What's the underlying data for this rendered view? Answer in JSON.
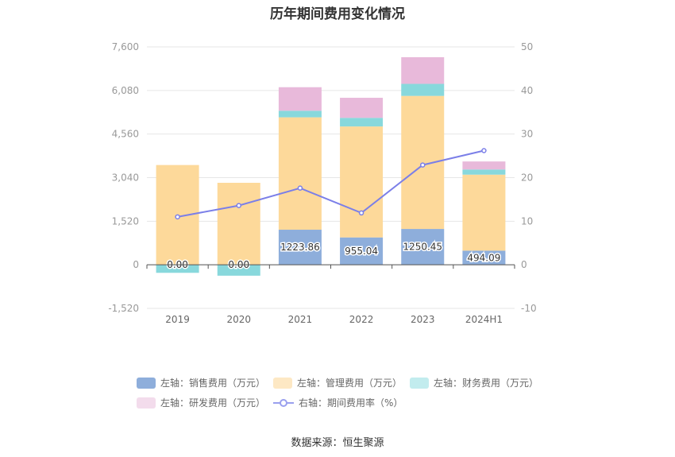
{
  "chart_data": {
    "type": "bar",
    "title": "历年期间费用变化情况",
    "categories": [
      "2019",
      "2020",
      "2021",
      "2022",
      "2023",
      "2024H1"
    ],
    "stacked": true,
    "left_axis": {
      "ylim": [
        -1520,
        7600
      ],
      "ticks": [
        "-1,520",
        "0",
        "1,520",
        "3,040",
        "4,560",
        "6,080",
        "7,600"
      ]
    },
    "right_axis": {
      "ylim": [
        -10,
        50
      ],
      "ticks": [
        "-10",
        "0",
        "10",
        "20",
        "30",
        "40",
        "50"
      ]
    },
    "series": [
      {
        "name": "左轴：销售费用（万元）",
        "type": "bar",
        "axis": "left",
        "color": "#8eaedb",
        "values": [
          0.0,
          0.0,
          1223.86,
          955.04,
          1250.45,
          494.09
        ],
        "labels": [
          "0.00",
          "0.00",
          "1223.86",
          "955.04",
          "1250.45",
          "494.09"
        ]
      },
      {
        "name": "左轴：管理费用（万元）",
        "type": "bar",
        "axis": "left",
        "color": "#fdd99a",
        "values": [
          3480,
          2860,
          3920,
          3870,
          4640,
          2650
        ]
      },
      {
        "name": "左轴：财务费用（万元）",
        "type": "bar",
        "axis": "left",
        "color": "#88d8dc",
        "values": [
          -280,
          -380,
          230,
          300,
          420,
          180
        ]
      },
      {
        "name": "左轴：研发费用（万元）",
        "type": "bar",
        "axis": "left",
        "color": "#e8b9da",
        "values": [
          0,
          0,
          820,
          700,
          930,
          280
        ]
      },
      {
        "name": "右轴：期间费用率（%）",
        "type": "line",
        "axis": "right",
        "color": "#7b7fe8",
        "values": [
          11.0,
          13.6,
          17.6,
          11.9,
          22.9,
          26.2
        ]
      }
    ],
    "grid": true,
    "legend": "bottom"
  },
  "source": "数据来源：恒生聚源"
}
